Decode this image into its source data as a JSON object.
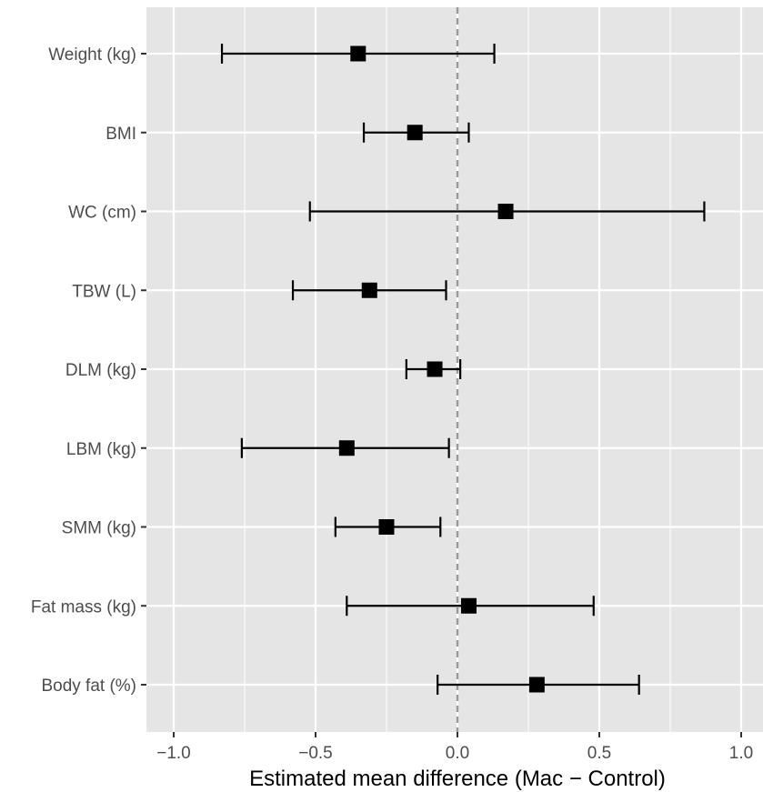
{
  "chart_data": {
    "type": "scatter",
    "subtype": "forest-plot",
    "title": "",
    "xlabel": "Estimated mean difference (Mac − Control)",
    "ylabel": "",
    "xlim": [
      -1.1,
      1.08
    ],
    "x_ticks": [
      -1.0,
      -0.5,
      0.0,
      0.5,
      1.0
    ],
    "x_tick_labels": [
      "−1.0",
      "−0.5",
      "0.0",
      "0.5",
      "1.0"
    ],
    "reference_line": 0,
    "grid": true,
    "background": "#e5e5e5",
    "grid_color": "#ffffff",
    "point_color": "#000000",
    "reference_line_color": "#999999",
    "categories": [
      "Weight (kg)",
      "BMI",
      "WC (cm)",
      "TBW (L)",
      "DLM (kg)",
      "LBM (kg)",
      "SMM (kg)",
      "Fat mass (kg)",
      "Body fat (%)"
    ],
    "estimates": [
      -0.35,
      -0.15,
      0.17,
      -0.31,
      -0.08,
      -0.39,
      -0.25,
      0.04,
      0.28
    ],
    "ci_lower": [
      -0.83,
      -0.33,
      -0.52,
      -0.58,
      -0.18,
      -0.76,
      -0.43,
      -0.39,
      -0.07
    ],
    "ci_upper": [
      0.13,
      0.04,
      0.87,
      -0.04,
      0.01,
      -0.03,
      -0.06,
      0.48,
      0.64
    ]
  }
}
